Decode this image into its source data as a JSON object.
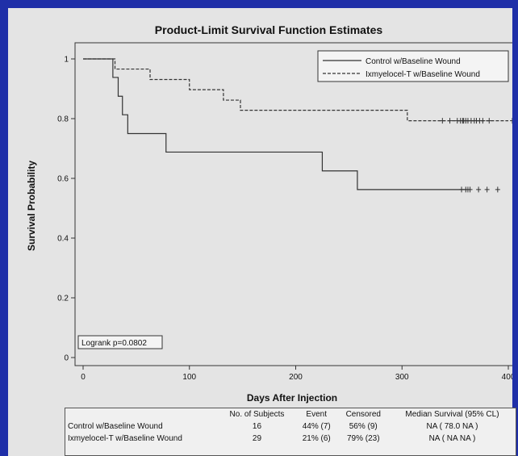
{
  "chart_data": {
    "type": "line",
    "step": true,
    "title": "Product-Limit Survival Function Estimates",
    "xlabel": "Days After Injection",
    "ylabel": "Survival Probability",
    "xlim": [
      0,
      400
    ],
    "ylim": [
      0,
      1
    ],
    "xticks": [
      "0",
      "100",
      "200",
      "300",
      "400"
    ],
    "yticks": [
      "0",
      "0.2",
      "0.4",
      "0.6",
      "0.8",
      "1"
    ],
    "legend_position": "top-right",
    "annotation": "Logrank p=0.0802",
    "series": [
      {
        "name": "Control w/Baseline Wound",
        "line_style": "solid",
        "steps": [
          [
            0,
            1
          ],
          [
            28,
            0.938
          ],
          [
            33,
            0.875
          ],
          [
            37,
            0.813
          ],
          [
            42,
            0.75
          ],
          [
            78,
            0.688
          ],
          [
            225,
            0.625
          ],
          [
            258,
            0.5625
          ],
          [
            360,
            0.5625
          ]
        ],
        "censored": [
          356,
          360,
          362,
          364,
          372,
          380,
          390
        ]
      },
      {
        "name": "Ixmyelocel-T w/Baseline Wound",
        "line_style": "dashed",
        "steps": [
          [
            0,
            1
          ],
          [
            30,
            0.966
          ],
          [
            63,
            0.931
          ],
          [
            100,
            0.897
          ],
          [
            132,
            0.862
          ],
          [
            148,
            0.828
          ],
          [
            305,
            0.793
          ],
          [
            400,
            0.793
          ]
        ],
        "censored": [
          338,
          345,
          352,
          355,
          357,
          358,
          360,
          362,
          365,
          368,
          370,
          373,
          376,
          382,
          405
        ]
      }
    ]
  },
  "summary_table": {
    "headers": [
      "",
      "No. of Subjects",
      "Event",
      "Censored",
      "Median Survival (95% CL)"
    ],
    "rows": [
      [
        "Control w/Baseline Wound",
        "16",
        "44% (7)",
        "56% (9)",
        "NA   (  78.0    NA  )"
      ],
      [
        "Ixmyelocel-T w/Baseline Wound",
        "29",
        "21% (6)",
        "79% (23)",
        "NA   (   NA     NA  )"
      ]
    ]
  }
}
